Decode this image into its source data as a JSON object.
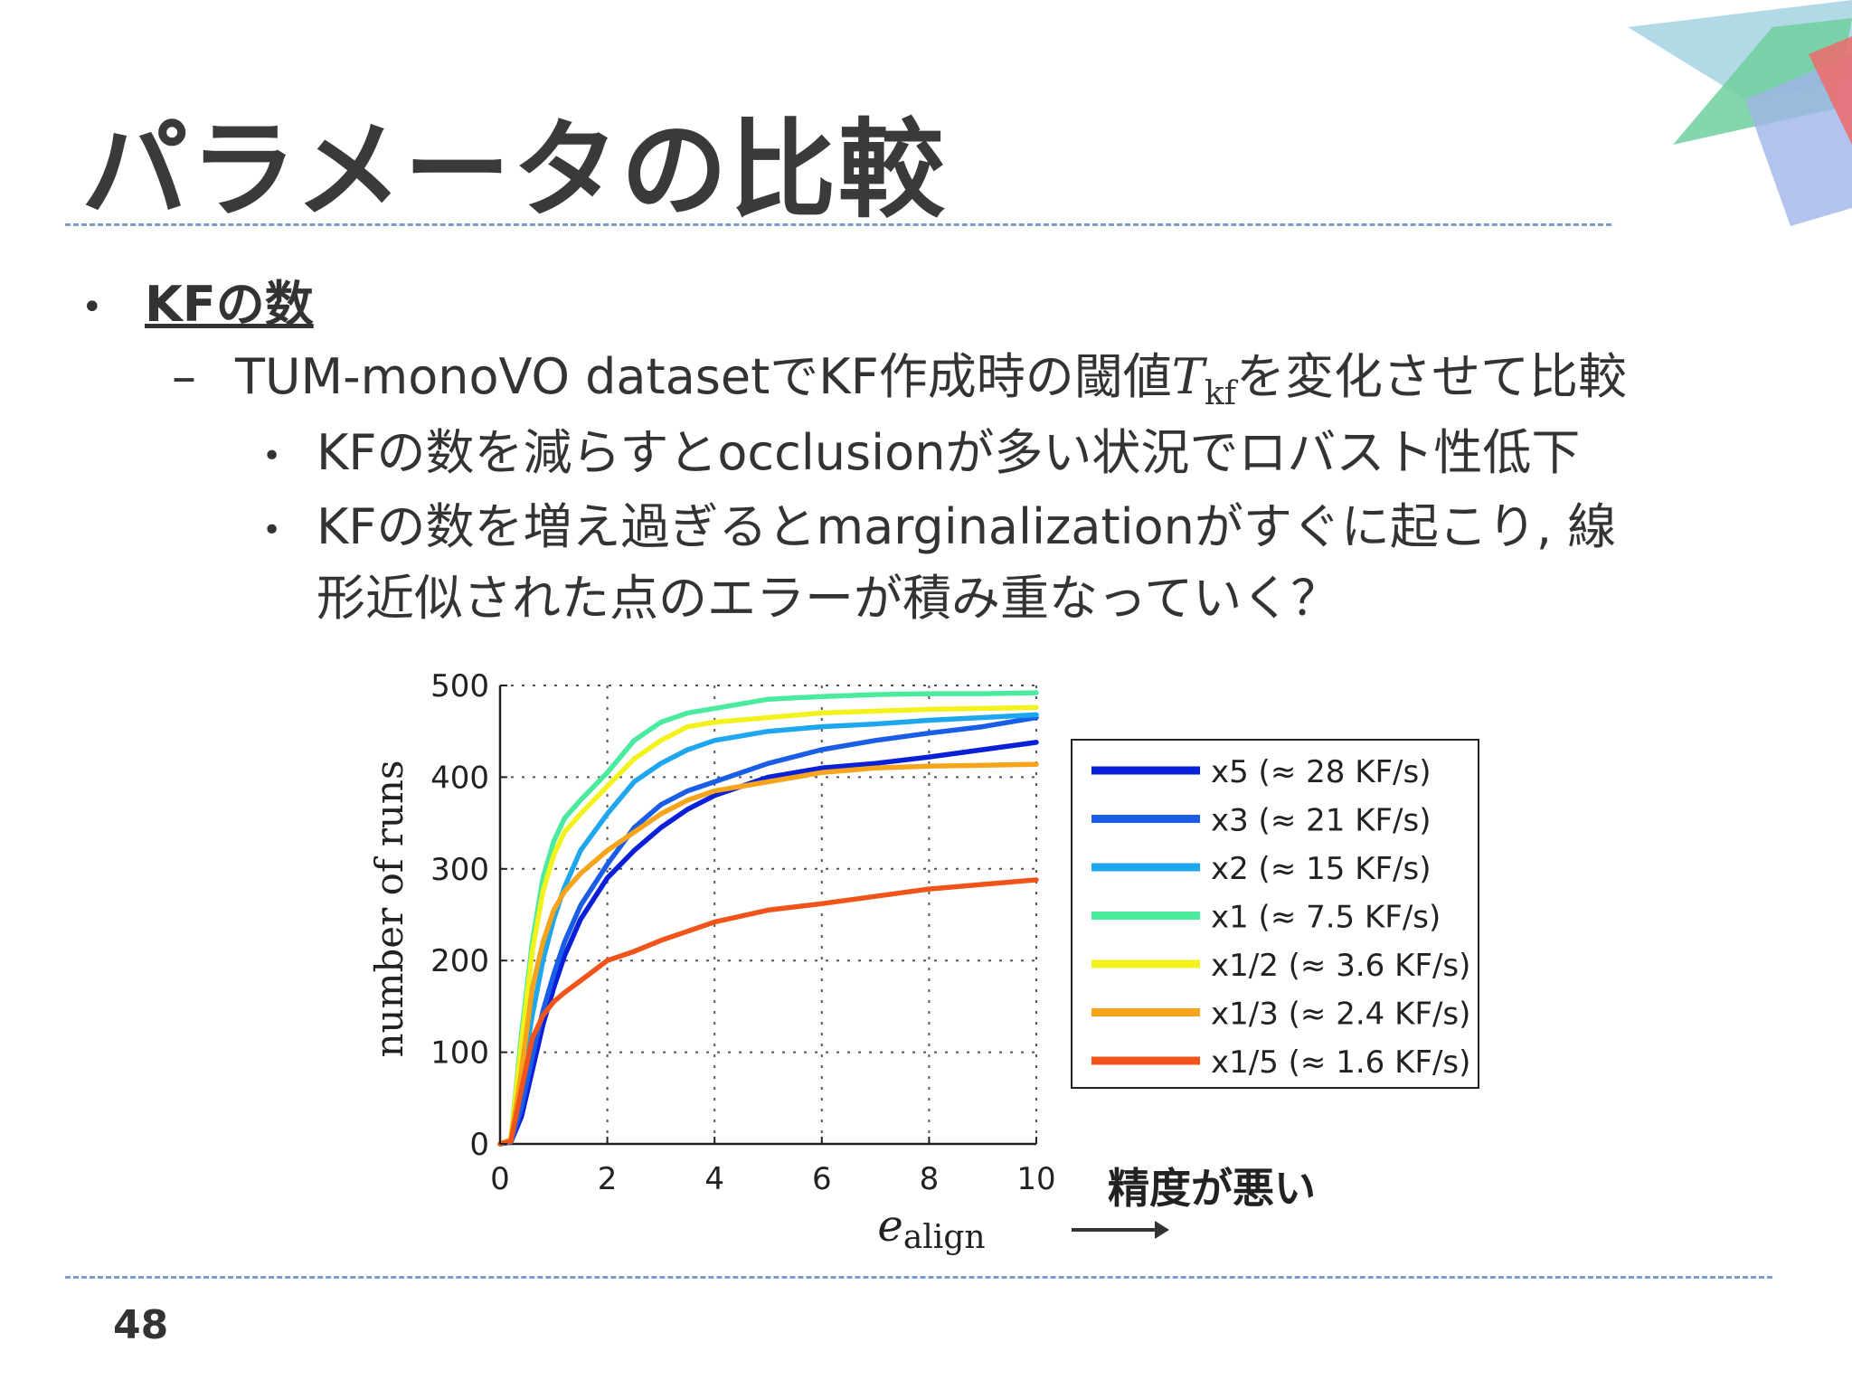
{
  "slide": {
    "title": "パラメータの比較",
    "page_number": "48",
    "bullets": {
      "level1": "KFの数",
      "level2_prefix": "TUM-monoVO datasetでKF作成時の閾値",
      "level2_symbol": "T",
      "level2_subscript": "kf",
      "level2_suffix": "を変化させて比較",
      "level3_a": "KFの数を減らすとocclusionが多い状況でロバスト性低下",
      "level3_b_line1": "KFの数を増え過ぎるとmarginalizationがすぐに起こり, 線",
      "level3_b_line2": "形近似された点のエラーが積み重なっていく？"
    },
    "annotation": "精度が悪い"
  },
  "chart_data": {
    "type": "line",
    "xlabel": "e",
    "xlabel_sub": "align",
    "ylabel": "number of runs",
    "xlim": [
      0,
      10
    ],
    "ylim": [
      0,
      500
    ],
    "xticks": [
      "0",
      "2",
      "4",
      "6",
      "8",
      "10"
    ],
    "yticks": [
      "0",
      "100",
      "200",
      "300",
      "400",
      "500"
    ],
    "grid": true,
    "legend": "right",
    "x": [
      0,
      0.2,
      0.4,
      0.6,
      0.8,
      1.0,
      1.2,
      1.5,
      2.0,
      2.5,
      3.0,
      3.5,
      4.0,
      5.0,
      6.0,
      7.0,
      8.0,
      9.0,
      10.0
    ],
    "series": [
      {
        "name": "x5 (≈ 28 KF/s)",
        "color": "#0a1fd8",
        "values": [
          0,
          2,
          30,
          80,
          130,
          170,
          205,
          245,
          290,
          320,
          345,
          365,
          380,
          400,
          410,
          415,
          422,
          430,
          438
        ]
      },
      {
        "name": "x3 (≈ 21 KF/s)",
        "color": "#1a5ee8",
        "values": [
          0,
          2,
          40,
          95,
          145,
          185,
          220,
          260,
          305,
          345,
          370,
          385,
          395,
          415,
          430,
          440,
          448,
          455,
          465
        ]
      },
      {
        "name": "x2 (≈ 15 KF/s)",
        "color": "#1ea6ee",
        "values": [
          0,
          3,
          70,
          140,
          200,
          245,
          280,
          320,
          360,
          395,
          415,
          430,
          440,
          450,
          455,
          458,
          462,
          465,
          468
        ]
      },
      {
        "name": "x1 (≈ 7.5 KF/s)",
        "color": "#4aeb9e",
        "values": [
          0,
          5,
          120,
          220,
          290,
          330,
          355,
          375,
          405,
          440,
          460,
          470,
          475,
          485,
          488,
          490,
          491,
          491,
          492
        ]
      },
      {
        "name": "x1/2 (≈ 3.6 KF/s)",
        "color": "#f4f21c",
        "values": [
          0,
          5,
          110,
          210,
          275,
          315,
          340,
          360,
          390,
          420,
          440,
          455,
          460,
          465,
          470,
          472,
          474,
          475,
          476
        ]
      },
      {
        "name": "x1/3 (≈ 2.4 KF/s)",
        "color": "#f6a41c",
        "values": [
          0,
          4,
          80,
          170,
          220,
          255,
          275,
          295,
          320,
          340,
          360,
          375,
          385,
          395,
          405,
          410,
          412,
          413,
          414
        ]
      },
      {
        "name": "x1/5 (≈ 1.6 KF/s)",
        "color": "#f0541a",
        "values": [
          0,
          3,
          60,
          115,
          140,
          155,
          165,
          178,
          200,
          210,
          222,
          232,
          242,
          255,
          262,
          270,
          278,
          283,
          288
        ]
      }
    ]
  }
}
